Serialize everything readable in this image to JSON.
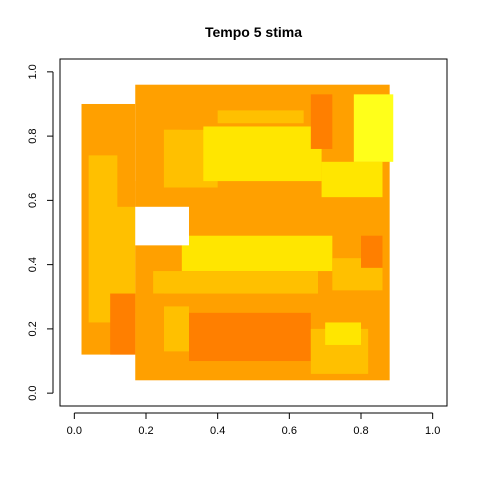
{
  "chart_data": {
    "type": "heatmap",
    "title": "Tempo 5 stima",
    "xlabel": "",
    "ylabel": "",
    "xlim": [
      0,
      1
    ],
    "ylim": [
      0,
      1
    ],
    "x_ticks": [
      "0.0",
      "0.2",
      "0.4",
      "0.6",
      "0.8",
      "1.0"
    ],
    "y_ticks": [
      "0.0",
      "0.2",
      "0.4",
      "0.6",
      "0.8",
      "1.0"
    ],
    "grid": false,
    "legend": "none",
    "colors": {
      "level_1": "#FF7F00",
      "level_2": "#FFA000",
      "level_3": "#FFC000",
      "level_4": "#FFE600",
      "level_5": "#FFFF1A"
    },
    "regions": [
      {
        "x": [
          0.17,
          0.88
        ],
        "y": [
          0.04,
          0.96
        ],
        "level": 2
      },
      {
        "x": [
          0.02,
          0.17
        ],
        "y": [
          0.12,
          0.9
        ],
        "level": 2
      },
      {
        "x": [
          0.04,
          0.12
        ],
        "y": [
          0.22,
          0.74
        ],
        "level": 3
      },
      {
        "x": [
          0.08,
          0.17
        ],
        "y": [
          0.25,
          0.58
        ],
        "level": 3
      },
      {
        "x": [
          0.17,
          0.3
        ],
        "y": [
          0.58,
          0.66
        ],
        "level": 2
      },
      {
        "x": [
          0.25,
          0.4
        ],
        "y": [
          0.64,
          0.82
        ],
        "level": 3
      },
      {
        "x": [
          0.3,
          0.84
        ],
        "y": [
          0.82,
          0.95
        ],
        "level": 2
      },
      {
        "x": [
          0.36,
          0.69
        ],
        "y": [
          0.66,
          0.83
        ],
        "level": 4
      },
      {
        "x": [
          0.69,
          0.86
        ],
        "y": [
          0.61,
          0.72
        ],
        "level": 4
      },
      {
        "x": [
          0.78,
          0.89
        ],
        "y": [
          0.72,
          0.93
        ],
        "level": 5
      },
      {
        "x": [
          0.66,
          0.72
        ],
        "y": [
          0.76,
          0.93
        ],
        "level": 1
      },
      {
        "x": [
          0.4,
          0.64
        ],
        "y": [
          0.84,
          0.88
        ],
        "level": 3
      },
      {
        "x": [
          0.3,
          0.72
        ],
        "y": [
          0.38,
          0.49
        ],
        "level": 4
      },
      {
        "x": [
          0.72,
          0.86
        ],
        "y": [
          0.32,
          0.42
        ],
        "level": 3
      },
      {
        "x": [
          0.8,
          0.86
        ],
        "y": [
          0.39,
          0.49
        ],
        "level": 1
      },
      {
        "x": [
          0.22,
          0.68
        ],
        "y": [
          0.31,
          0.38
        ],
        "level": 3
      },
      {
        "x": [
          0.32,
          0.66
        ],
        "y": [
          0.1,
          0.25
        ],
        "level": 1
      },
      {
        "x": [
          0.25,
          0.32
        ],
        "y": [
          0.13,
          0.27
        ],
        "level": 3
      },
      {
        "x": [
          0.66,
          0.82
        ],
        "y": [
          0.06,
          0.2
        ],
        "level": 3
      },
      {
        "x": [
          0.7,
          0.8
        ],
        "y": [
          0.15,
          0.22
        ],
        "level": 4
      },
      {
        "x": [
          0.17,
          0.25
        ],
        "y": [
          0.12,
          0.31
        ],
        "level": 2
      },
      {
        "x": [
          0.1,
          0.17
        ],
        "y": [
          0.12,
          0.31
        ],
        "level": 1
      },
      {
        "x": [
          0.22,
          0.28
        ],
        "y": [
          0.4,
          0.49
        ],
        "level": 2
      }
    ],
    "holes": [
      {
        "x": [
          0.17,
          0.32
        ],
        "y": [
          0.46,
          0.58
        ]
      }
    ]
  }
}
